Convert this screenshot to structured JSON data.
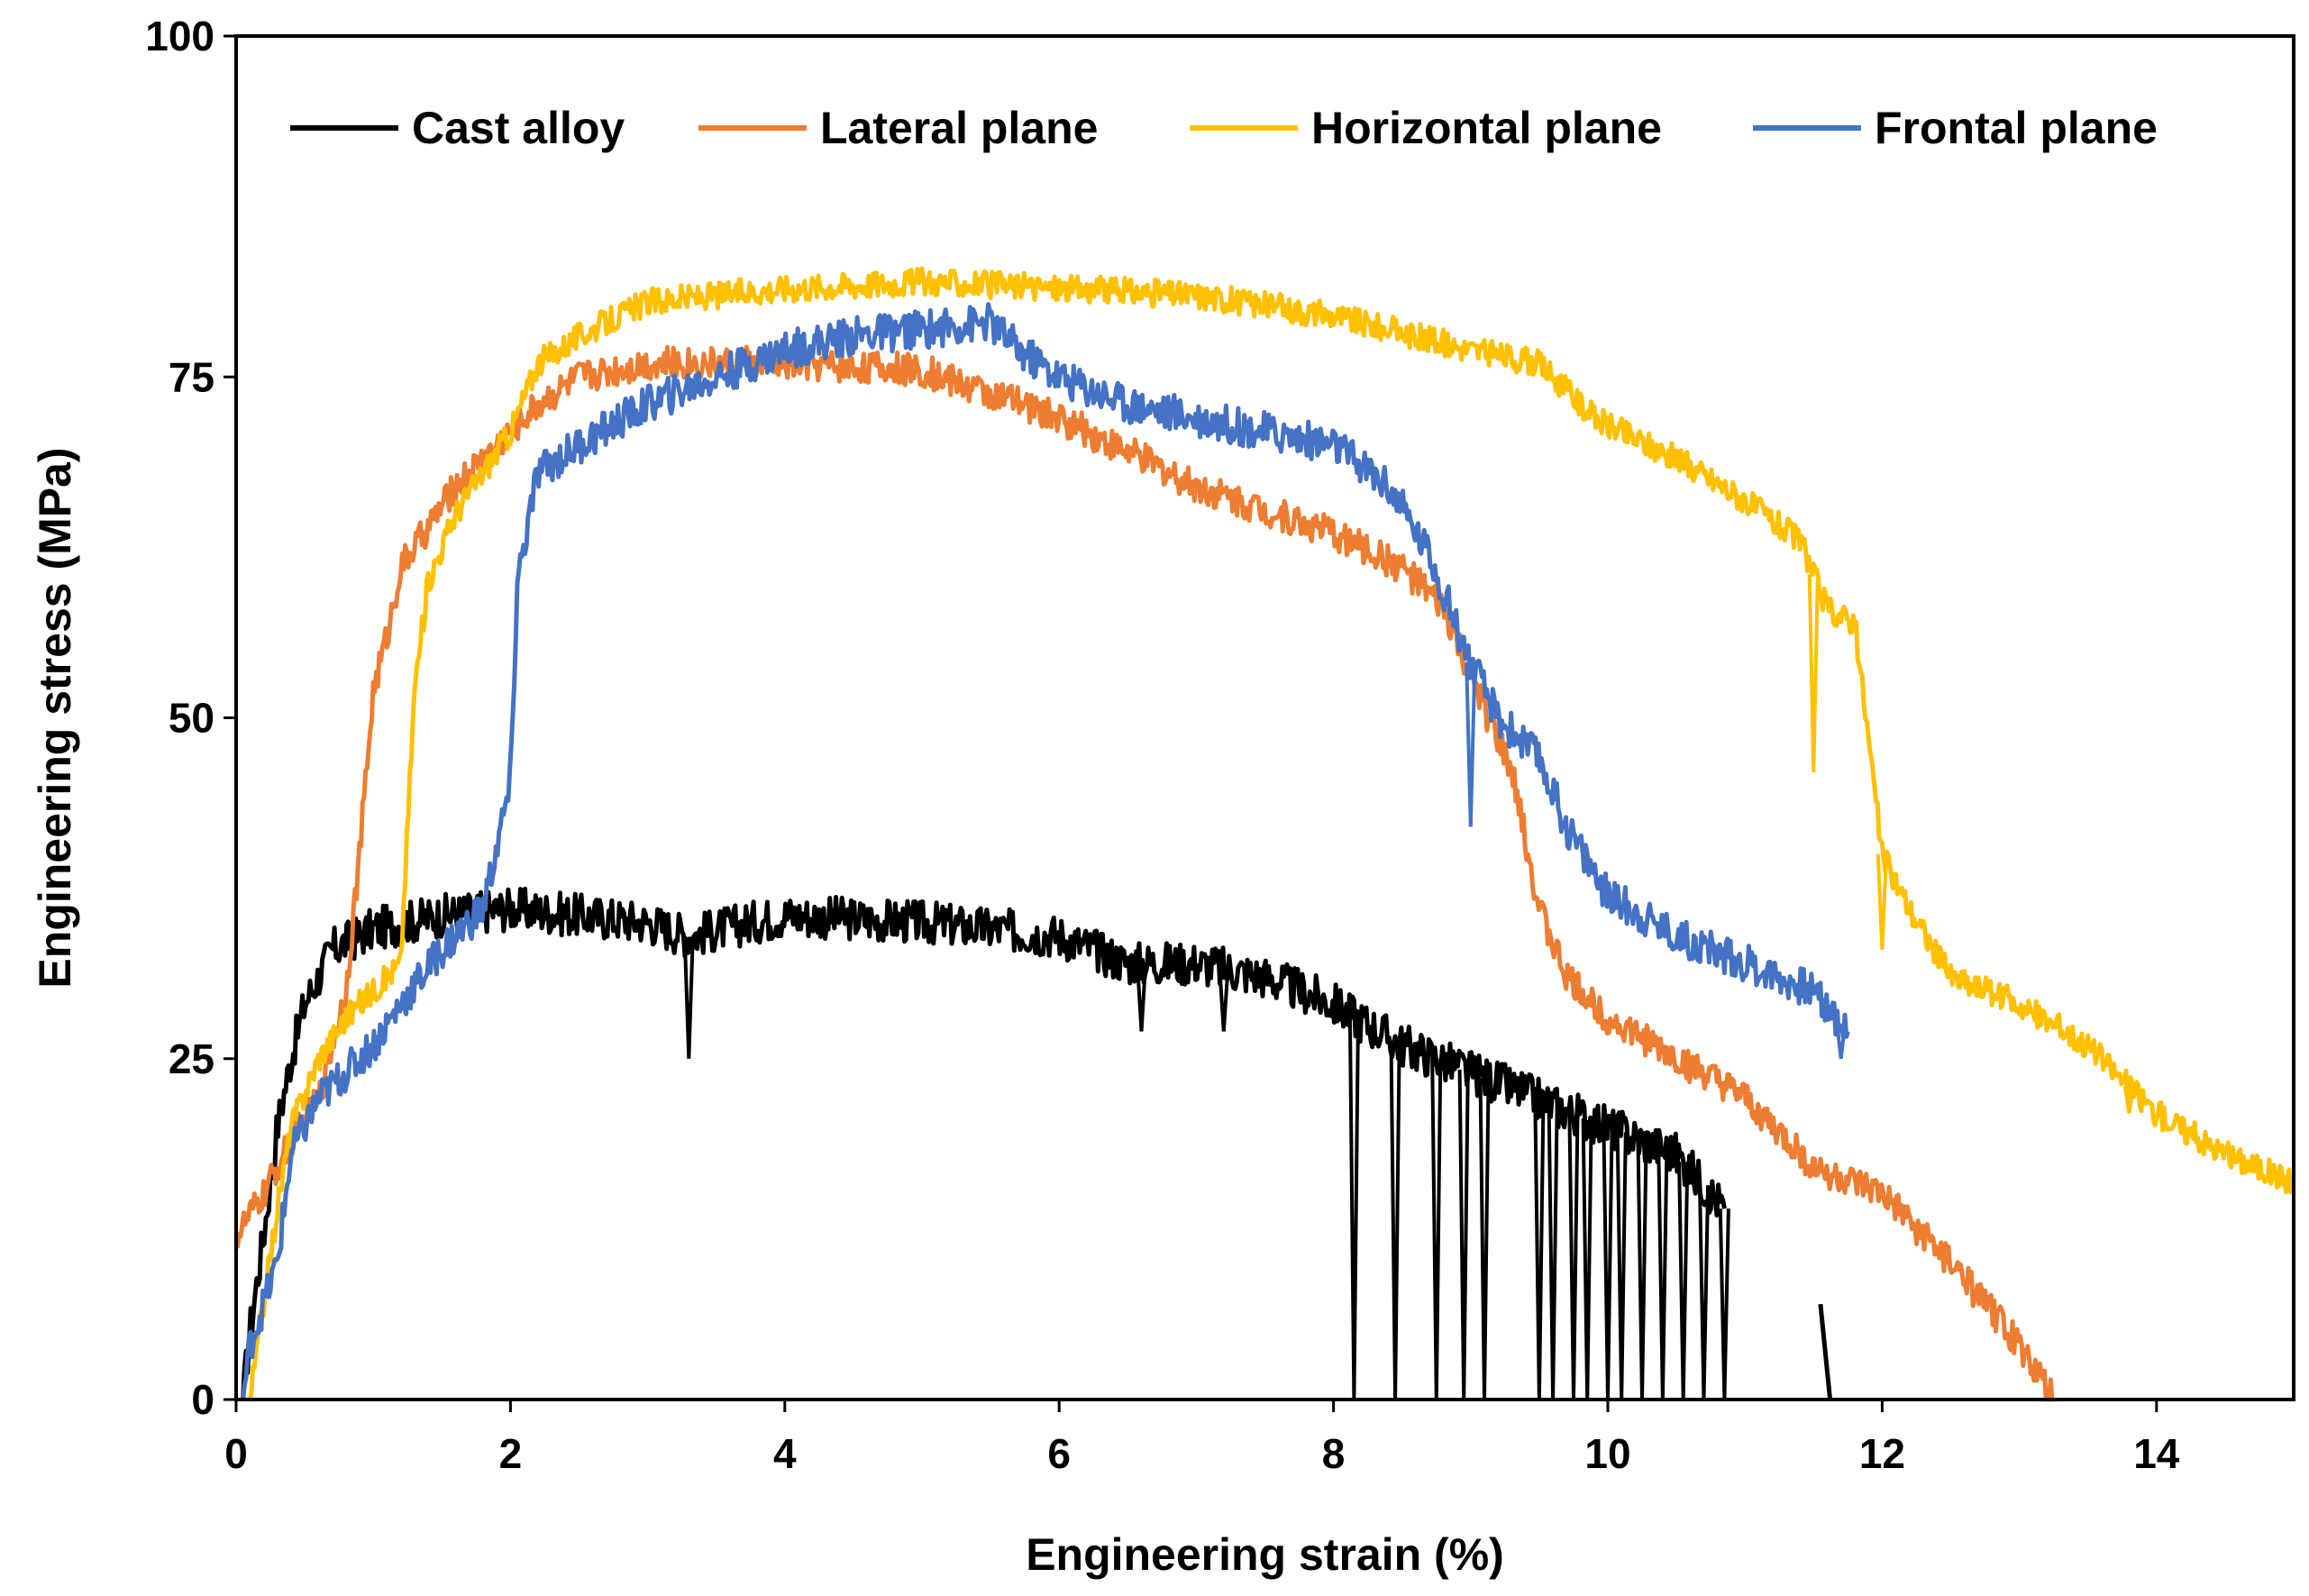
{
  "chart_data": {
    "type": "line",
    "title": "",
    "xlabel": "Engineering strain (%)",
    "ylabel": "Engineering stress (MPa)",
    "xlim": [
      0,
      15
    ],
    "ylim": [
      0,
      100
    ],
    "xticks": [
      0,
      2,
      4,
      6,
      8,
      10,
      12,
      14
    ],
    "yticks": [
      0,
      25,
      50,
      75,
      100
    ],
    "grid": false,
    "legend": "top",
    "series": [
      {
        "name": "Cast alloy",
        "color": "#000000",
        "noise": 1.6,
        "points": [
          [
            0.05,
            0
          ],
          [
            0.1,
            5
          ],
          [
            0.2,
            12
          ],
          [
            0.3,
            20
          ],
          [
            0.4,
            25
          ],
          [
            0.5,
            29
          ],
          [
            0.7,
            33
          ],
          [
            1.0,
            34.5
          ],
          [
            1.5,
            35.5
          ],
          [
            2.0,
            36
          ],
          [
            2.5,
            35.5
          ],
          [
            3.0,
            35
          ],
          [
            3.3,
            34
          ],
          [
            4.0,
            35.5
          ],
          [
            5.0,
            35
          ],
          [
            6.0,
            34
          ],
          [
            6.5,
            32
          ],
          [
            7.0,
            32
          ],
          [
            7.5,
            31
          ],
          [
            8.0,
            29
          ],
          [
            8.5,
            26
          ],
          [
            9.0,
            24
          ],
          [
            9.5,
            22
          ],
          [
            10.0,
            20
          ],
          [
            10.5,
            18
          ],
          [
            10.85,
            14
          ]
        ],
        "drops": [
          [
            3.3,
            25
          ],
          [
            6.6,
            27
          ],
          [
            7.2,
            27
          ],
          [
            8.15,
            0
          ],
          [
            8.45,
            0
          ],
          [
            8.75,
            0
          ],
          [
            8.95,
            0
          ],
          [
            9.1,
            0
          ],
          [
            9.5,
            0
          ],
          [
            9.6,
            0
          ],
          [
            9.75,
            0
          ],
          [
            9.85,
            0
          ],
          [
            10.0,
            0
          ],
          [
            10.1,
            0
          ],
          [
            10.25,
            0
          ],
          [
            10.4,
            0
          ],
          [
            10.55,
            0
          ],
          [
            10.7,
            0
          ],
          [
            10.85,
            0
          ]
        ],
        "fragments": [
          [
            [
              11.55,
              7
            ],
            [
              11.62,
              0
            ]
          ]
        ]
      },
      {
        "name": "Lateral plane",
        "color": "#ED7D31",
        "noise": 1.2,
        "points": [
          [
            0,
            12
          ],
          [
            0.2,
            15
          ],
          [
            0.4,
            19
          ],
          [
            0.6,
            22
          ],
          [
            0.8,
            30
          ],
          [
            0.9,
            40
          ],
          [
            1.0,
            52
          ],
          [
            1.1,
            56
          ],
          [
            1.2,
            61
          ],
          [
            1.4,
            64
          ],
          [
            1.6,
            67
          ],
          [
            1.8,
            69
          ],
          [
            2.0,
            71
          ],
          [
            2.2,
            73
          ],
          [
            2.5,
            75
          ],
          [
            3.0,
            76
          ],
          [
            4.0,
            76
          ],
          [
            5.0,
            75.5
          ],
          [
            6.0,
            72
          ],
          [
            7.0,
            67
          ],
          [
            8.0,
            63.5
          ],
          [
            8.5,
            61
          ],
          [
            8.8,
            58
          ],
          [
            9.0,
            53
          ],
          [
            9.3,
            46
          ],
          [
            9.5,
            36
          ],
          [
            9.7,
            31
          ],
          [
            10.0,
            28
          ],
          [
            10.5,
            25
          ],
          [
            11.0,
            22
          ],
          [
            11.5,
            17
          ],
          [
            12.0,
            15
          ],
          [
            12.5,
            10
          ],
          [
            13.0,
            4
          ],
          [
            13.25,
            0
          ]
        ],
        "drops": [],
        "fragments": []
      },
      {
        "name": "Horizontal plane",
        "color": "#FFC000",
        "noise": 1.0,
        "points": [
          [
            0.1,
            0
          ],
          [
            0.2,
            7
          ],
          [
            0.3,
            14
          ],
          [
            0.4,
            20
          ],
          [
            0.6,
            25
          ],
          [
            0.8,
            28
          ],
          [
            1.0,
            30
          ],
          [
            1.2,
            32
          ],
          [
            1.3,
            52
          ],
          [
            1.4,
            60
          ],
          [
            1.6,
            65
          ],
          [
            1.8,
            68
          ],
          [
            2.0,
            71
          ],
          [
            2.2,
            76
          ],
          [
            2.5,
            78
          ],
          [
            3.0,
            80.5
          ],
          [
            4.0,
            81.5
          ],
          [
            5.0,
            82
          ],
          [
            6.0,
            81.5
          ],
          [
            7.0,
            81
          ],
          [
            8.0,
            79.5
          ],
          [
            9.0,
            77
          ],
          [
            9.5,
            76
          ],
          [
            9.9,
            72
          ],
          [
            10.5,
            69
          ],
          [
            11.0,
            66
          ],
          [
            11.4,
            63
          ],
          [
            11.6,
            58
          ],
          [
            11.8,
            57
          ],
          [
            12.0,
            40
          ],
          [
            12.2,
            36
          ],
          [
            12.5,
            31
          ],
          [
            13.0,
            29
          ],
          [
            13.5,
            26
          ],
          [
            14.0,
            21
          ],
          [
            14.5,
            18
          ],
          [
            15.0,
            16
          ]
        ],
        "drops": [
          [
            11.5,
            46
          ],
          [
            12.0,
            33
          ],
          [
            13.8,
            21
          ]
        ],
        "fragments": []
      },
      {
        "name": "Frontal plane",
        "color": "#4472C4",
        "noise": 1.4,
        "points": [
          [
            0.05,
            0
          ],
          [
            0.1,
            4
          ],
          [
            0.3,
            10
          ],
          [
            0.4,
            18
          ],
          [
            0.6,
            22
          ],
          [
            0.8,
            24
          ],
          [
            1.0,
            26
          ],
          [
            1.2,
            29
          ],
          [
            1.5,
            33
          ],
          [
            1.8,
            36
          ],
          [
            2.0,
            45
          ],
          [
            2.05,
            60
          ],
          [
            2.2,
            68
          ],
          [
            2.5,
            70
          ],
          [
            3.0,
            73
          ],
          [
            3.5,
            75
          ],
          [
            4.0,
            77
          ],
          [
            4.5,
            78
          ],
          [
            5.0,
            78.5
          ],
          [
            5.5,
            79
          ],
          [
            5.7,
            77
          ],
          [
            6.0,
            75
          ],
          [
            6.5,
            73
          ],
          [
            7.0,
            72
          ],
          [
            7.5,
            71
          ],
          [
            8.0,
            70
          ],
          [
            8.4,
            67
          ],
          [
            8.7,
            62
          ],
          [
            9.0,
            54
          ],
          [
            9.2,
            50
          ],
          [
            9.5,
            47
          ],
          [
            9.7,
            42
          ],
          [
            10.0,
            37
          ],
          [
            10.5,
            34
          ],
          [
            11.0,
            32
          ],
          [
            11.5,
            30
          ],
          [
            11.75,
            27
          ]
        ],
        "drops": [
          [
            9.0,
            42
          ],
          [
            11.7,
            25
          ]
        ],
        "fragments": []
      }
    ]
  }
}
